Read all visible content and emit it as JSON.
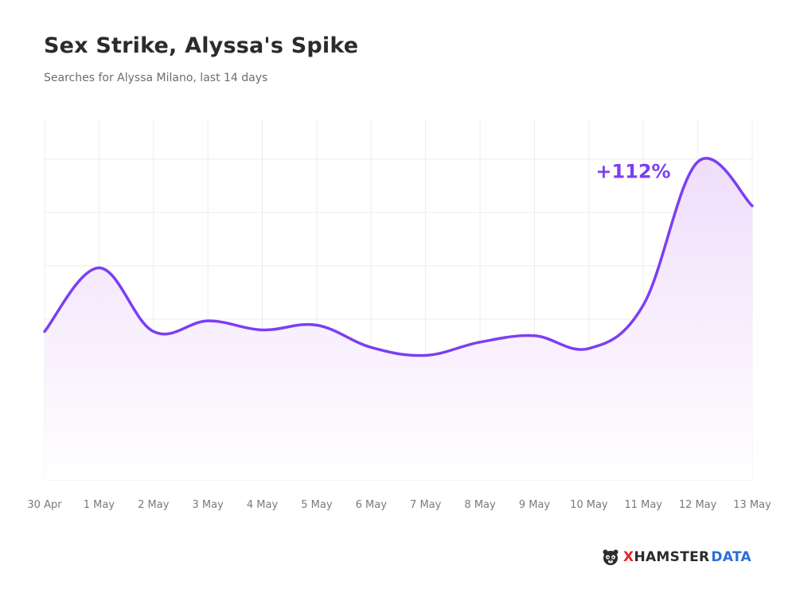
{
  "header": {
    "title": "Sex Strike, Alyssa's Spike",
    "subtitle": "Searches for Alyssa Milano, last 14 days"
  },
  "chart_data": {
    "type": "area",
    "categories": [
      "30 Apr",
      "1 May",
      "2 May",
      "3 May",
      "4 May",
      "5 May",
      "6 May",
      "7 May",
      "8 May",
      "9 May",
      "10 May",
      "11 May",
      "12 May",
      "13 May"
    ],
    "values": [
      28,
      40,
      28,
      30,
      28.3,
      29.2,
      25,
      23.5,
      26,
      27.2,
      24.8,
      33,
      60,
      51.7
    ],
    "ylim": [
      0,
      68
    ],
    "grid": true,
    "annotation": {
      "text": "+112%",
      "category": "12 May"
    },
    "colors": {
      "line": "#7b3ff2",
      "fill": "#f5e6fb",
      "grid": "#ececec"
    }
  },
  "brand": {
    "x": "X",
    "hamster": "HAMSTER",
    "data": "DATA"
  }
}
